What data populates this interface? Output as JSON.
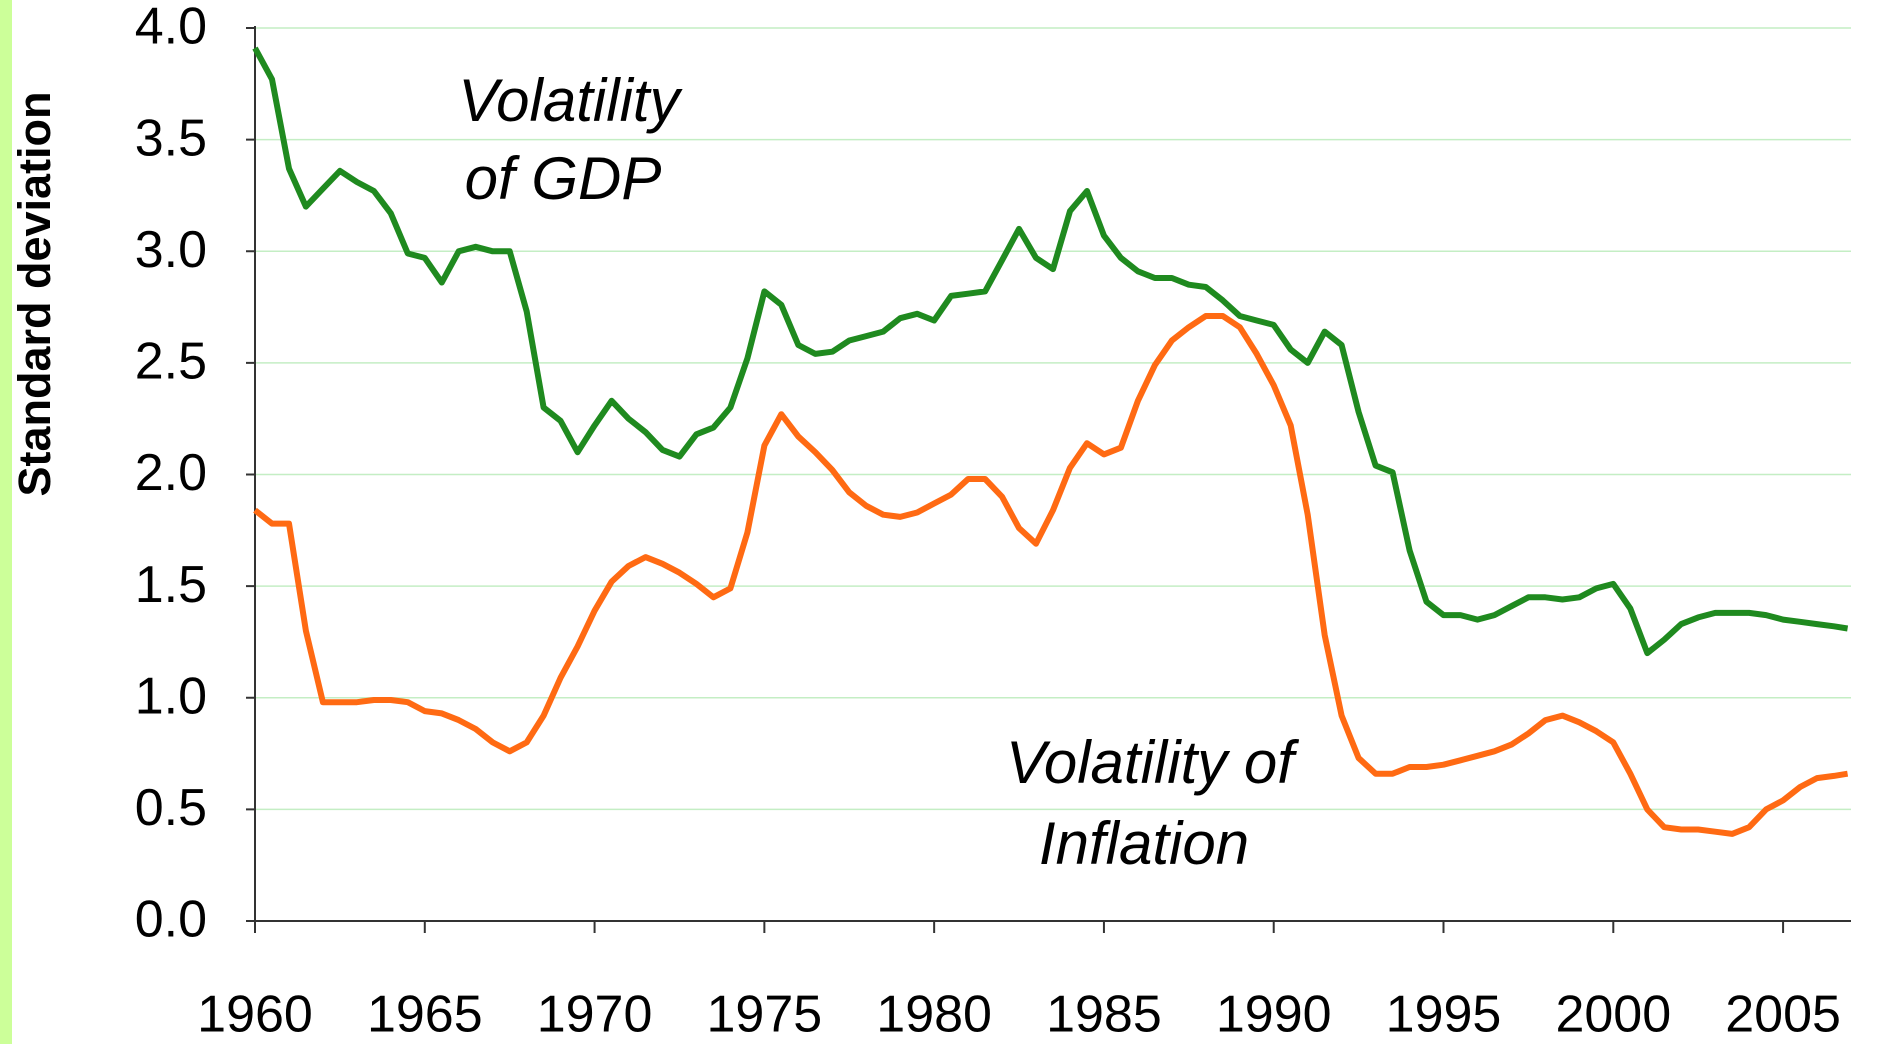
{
  "chart_data": {
    "type": "line",
    "y_label": "Standard deviation",
    "annotations": [
      [
        "Volatility",
        "of GDP"
      ],
      [
        "Volatility of",
        "Inflation"
      ]
    ],
    "x": [
      1960.0,
      1960.5,
      1961.0,
      1961.5,
      1962.0,
      1962.5,
      1963.0,
      1963.5,
      1964.0,
      1964.5,
      1965.0,
      1965.5,
      1966.0,
      1966.5,
      1967.0,
      1967.5,
      1968.0,
      1968.5,
      1969.0,
      1969.5,
      1970.0,
      1970.5,
      1971.0,
      1971.5,
      1972.0,
      1972.5,
      1973.0,
      1973.5,
      1974.0,
      1974.5,
      1975.0,
      1975.5,
      1976.0,
      1976.5,
      1977.0,
      1977.5,
      1978.0,
      1978.5,
      1979.0,
      1979.5,
      1980.0,
      1980.5,
      1981.0,
      1981.5,
      1982.0,
      1982.5,
      1983.0,
      1983.5,
      1984.0,
      1984.5,
      1985.0,
      1985.5,
      1986.0,
      1986.5,
      1987.0,
      1987.5,
      1988.0,
      1988.5,
      1989.0,
      1989.5,
      1990.0,
      1990.5,
      1991.0,
      1991.5,
      1992.0,
      1992.5,
      1993.0,
      1993.5,
      1994.0,
      1994.5,
      1995.0,
      1995.5,
      1996.0,
      1996.5,
      1997.0,
      1997.5,
      1998.0,
      1998.5,
      1999.0,
      1999.5,
      2000.0,
      2000.5,
      2001.0,
      2001.5,
      2002.0,
      2002.5,
      2003.0,
      2003.5,
      2004.0,
      2004.5,
      2005.0,
      2005.5,
      2006.0,
      2006.5,
      2006.9
    ],
    "series": [
      {
        "name": "Volatility of GDP",
        "color": "#1f8a1f",
        "values": [
          3.91,
          3.77,
          3.37,
          3.2,
          3.28,
          3.36,
          3.31,
          3.27,
          3.17,
          2.99,
          2.97,
          2.86,
          3.0,
          3.02,
          3.0,
          3.0,
          2.73,
          2.3,
          2.24,
          2.1,
          2.22,
          2.33,
          2.25,
          2.19,
          2.11,
          2.08,
          2.18,
          2.21,
          2.3,
          2.52,
          2.82,
          2.76,
          2.58,
          2.54,
          2.55,
          2.6,
          2.62,
          2.64,
          2.7,
          2.72,
          2.69,
          2.8,
          2.81,
          2.82,
          2.96,
          3.1,
          2.97,
          2.92,
          3.18,
          3.27,
          3.07,
          2.97,
          2.91,
          2.88,
          2.88,
          2.85,
          2.84,
          2.78,
          2.71,
          2.69,
          2.67,
          2.56,
          2.5,
          2.64,
          2.58,
          2.28,
          2.04,
          2.01,
          1.66,
          1.43,
          1.37,
          1.37,
          1.35,
          1.37,
          1.41,
          1.45,
          1.45,
          1.44,
          1.45,
          1.49,
          1.51,
          1.4,
          1.2,
          1.26,
          1.33,
          1.36,
          1.38,
          1.38,
          1.38,
          1.37,
          1.35,
          1.34,
          1.33,
          1.32,
          1.31
        ]
      },
      {
        "name": "Volatility of Inflation",
        "color": "#ff6a13",
        "values": [
          1.84,
          1.78,
          1.78,
          1.3,
          0.98,
          0.98,
          0.98,
          0.99,
          0.99,
          0.98,
          0.94,
          0.93,
          0.9,
          0.86,
          0.8,
          0.76,
          0.8,
          0.92,
          1.09,
          1.23,
          1.39,
          1.52,
          1.59,
          1.63,
          1.6,
          1.56,
          1.51,
          1.45,
          1.49,
          1.74,
          2.13,
          2.27,
          2.17,
          2.1,
          2.02,
          1.92,
          1.86,
          1.82,
          1.81,
          1.83,
          1.87,
          1.91,
          1.98,
          1.98,
          1.9,
          1.76,
          1.69,
          1.84,
          2.03,
          2.14,
          2.09,
          2.12,
          2.33,
          2.49,
          2.6,
          2.66,
          2.71,
          2.71,
          2.66,
          2.54,
          2.4,
          2.22,
          1.82,
          1.28,
          0.92,
          0.73,
          0.66,
          0.66,
          0.69,
          0.69,
          0.7,
          0.72,
          0.74,
          0.76,
          0.79,
          0.84,
          0.9,
          0.92,
          0.89,
          0.85,
          0.8,
          0.66,
          0.5,
          0.42,
          0.41,
          0.41,
          0.4,
          0.39,
          0.42,
          0.5,
          0.54,
          0.6,
          0.64,
          0.65,
          0.66
        ]
      }
    ],
    "xlim": [
      1960,
      2007
    ],
    "xticks": [
      1960,
      1965,
      1970,
      1975,
      1980,
      1985,
      1990,
      1995,
      2000,
      2005
    ],
    "ylim": [
      0,
      4
    ],
    "yticks": [
      {
        "value": 0,
        "label": "0.0"
      },
      0.5,
      {
        "value": 1,
        "label": "1.0"
      },
      1.5,
      {
        "value": 2,
        "label": "2.0"
      },
      2.5,
      {
        "value": 3,
        "label": "3.0"
      },
      3.5,
      {
        "value": 4,
        "label": "4.0"
      }
    ],
    "grid": true,
    "grid_color": "#c4eec4",
    "side_band_color": "#ccff99"
  }
}
